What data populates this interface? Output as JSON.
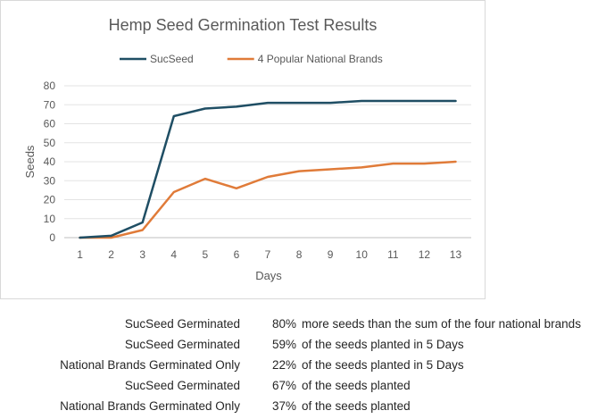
{
  "chart_data": {
    "type": "line",
    "title": "Hemp Seed Germination Test Results",
    "xlabel": "Days",
    "ylabel": "Seeds",
    "x": [
      1,
      2,
      3,
      4,
      5,
      6,
      7,
      8,
      9,
      10,
      11,
      12,
      13
    ],
    "ylim": [
      0,
      80
    ],
    "yticks": [
      0,
      10,
      20,
      30,
      40,
      50,
      60,
      70,
      80
    ],
    "grid": "horizontal",
    "legend_position": "top",
    "series": [
      {
        "name": "SucSeed",
        "color": "#1f4e64",
        "values": [
          0,
          1,
          8,
          64,
          68,
          69,
          71,
          71,
          71,
          72,
          72,
          72,
          72
        ]
      },
      {
        "name": "4 Popular National Brands",
        "color": "#e07b39",
        "values": [
          0,
          0,
          4,
          24,
          31,
          26,
          32,
          35,
          36,
          37,
          39,
          39,
          40
        ]
      }
    ]
  },
  "summary": [
    {
      "label": "SucSeed Germinated",
      "pct": "80%",
      "desc": "more seeds than the sum of the four national brands"
    },
    {
      "label": "SucSeed Germinated",
      "pct": "59%",
      "desc": "of the seeds planted in 5 Days"
    },
    {
      "label": "National Brands Germinated Only",
      "pct": "22%",
      "desc": "of the seeds planted in 5 Days"
    },
    {
      "label": "SucSeed Germinated",
      "pct": "67%",
      "desc": "of the seeds planted"
    },
    {
      "label": "National Brands Germinated Only",
      "pct": "37%",
      "desc": "of the seeds planted"
    }
  ]
}
